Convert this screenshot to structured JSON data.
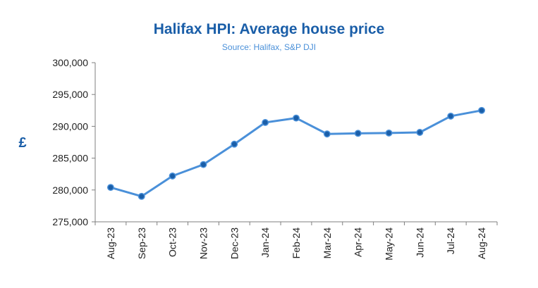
{
  "chart_data": {
    "type": "line",
    "title": "Halifax HPI: Average house price",
    "subtitle": "Source: Halifax, S&P DJI",
    "xlabel": "",
    "ylabel": "£",
    "categories": [
      "Aug-23",
      "Sep-23",
      "Oct-23",
      "Nov-23",
      "Dec-23",
      "Jan-24",
      "Feb-24",
      "Mar-24",
      "Apr-24",
      "May-24",
      "Jun-24",
      "Jul-24",
      "Aug-24"
    ],
    "values": [
      280400,
      279000,
      282200,
      284000,
      287200,
      290600,
      291300,
      288800,
      288900,
      288950,
      289050,
      291600,
      292500
    ],
    "ylim": [
      275000,
      300000
    ],
    "yticks": [
      275000,
      280000,
      285000,
      290000,
      295000,
      300000
    ],
    "ytick_labels": [
      "275,000",
      "280,000",
      "285,000",
      "290,000",
      "295,000",
      "300,000"
    ],
    "grid": false,
    "line_color": "#4a90d9",
    "marker_color": "#1a5ea8"
  }
}
